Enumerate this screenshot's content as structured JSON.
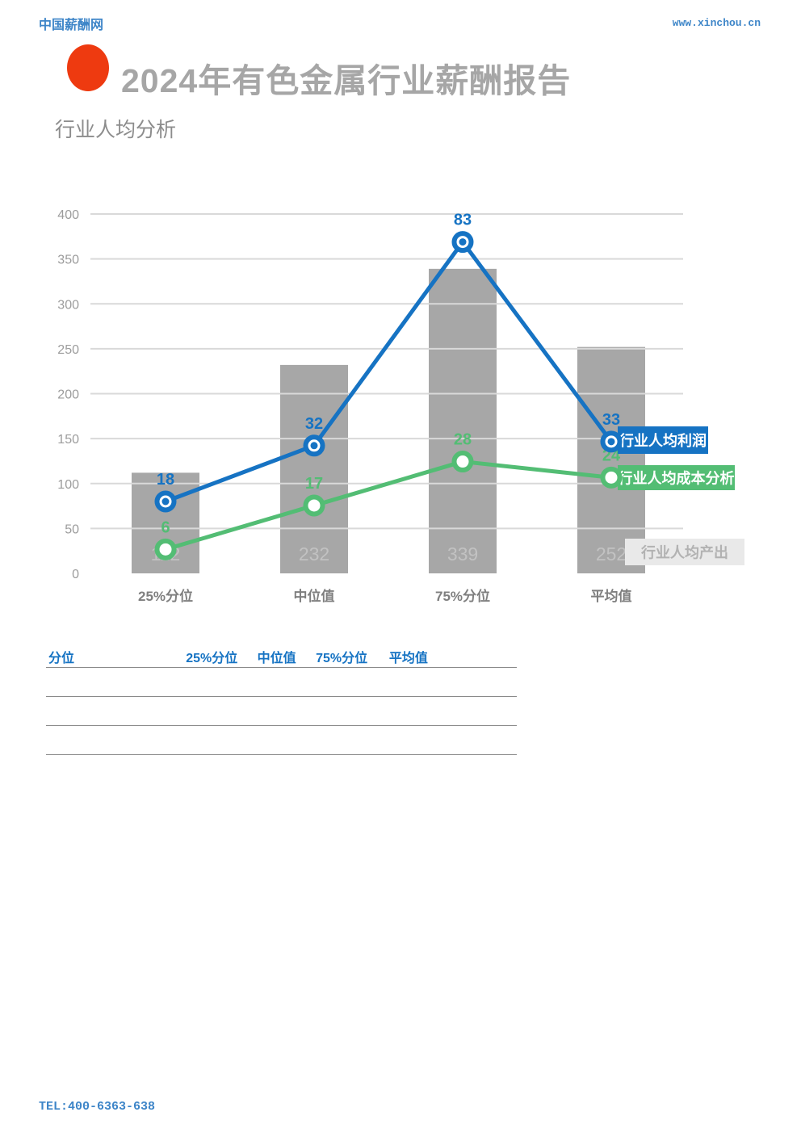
{
  "header": {
    "site_name": "中国薪酬网",
    "site_url": "www.xinchou.cn"
  },
  "title": {
    "report_title": "2024年有色金属行业薪酬报告",
    "section_title": "行业人均分析"
  },
  "chart_data": {
    "type": "bar+line combo",
    "categories": [
      "25%分位",
      "中位值",
      "75%分位",
      "平均值"
    ],
    "series": [
      {
        "name": "行业人均产出",
        "type": "bar",
        "color": "#a7a7a7",
        "values": [
          112,
          232,
          339,
          252
        ]
      },
      {
        "name": "行业人均利润",
        "type": "line",
        "color": "#1673c3",
        "values": [
          18,
          32,
          83,
          33
        ]
      },
      {
        "name": "行业人均成本分析",
        "type": "line",
        "color": "#53bd74",
        "values": [
          6,
          17,
          28,
          24
        ]
      }
    ],
    "primary_axis": {
      "min": 0,
      "max": 400,
      "tick_step": 50,
      "ticks": [
        400,
        350,
        300,
        250,
        200,
        150,
        100,
        50,
        0
      ]
    },
    "secondary_axis": {
      "min": 0,
      "max": 90,
      "note": "line series plotted on hidden secondary scale"
    },
    "grid": true,
    "legend_position": "right of last data points",
    "title": "行业人均分析",
    "xlabel": "",
    "ylabel": ""
  },
  "legend": {
    "profit_label": "行业人均利润",
    "cost_label": "行业人均成本分析",
    "output_label": "行业人均产出",
    "profit_bg": "#1673c3",
    "cost_bg": "#53bd74",
    "output_bg": "#e9e9e9",
    "output_text_color": "#b2b2b2"
  },
  "table": {
    "headers": [
      "分位",
      "25%分位",
      "中位值",
      "75%分位",
      "平均值"
    ],
    "rows": [
      [
        "",
        "",
        "",
        "",
        ""
      ],
      [
        "",
        "",
        "",
        "",
        ""
      ],
      [
        "",
        "",
        "",
        "",
        ""
      ]
    ]
  },
  "footer": {
    "tel": "TEL:400-6363-638"
  },
  "colors": {
    "accent_red": "#ee3a10",
    "link_blue": "#3d85c8",
    "title_gray": "#a6a6a6",
    "bar_gray": "#a7a7a7",
    "bar_label_gray": "#c2c2c2",
    "grid_gray": "#d9d9d9",
    "ytick_gray": "#9c9c9c",
    "xtick_gray": "#7f7f7f",
    "line_blue": "#1673c3",
    "line_green": "#53bd74"
  }
}
